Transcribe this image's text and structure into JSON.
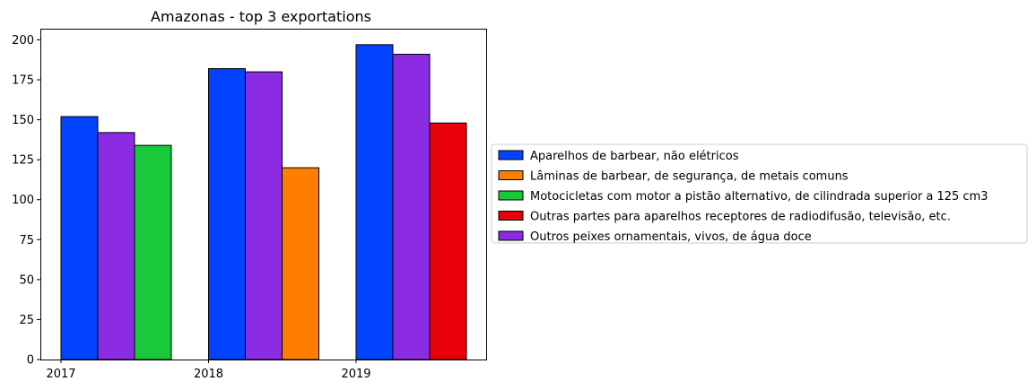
{
  "chart_data": {
    "type": "bar",
    "title": "Amazonas - top 3 exportations",
    "xlabel": "",
    "ylabel": "",
    "categories": [
      "2017",
      "2018",
      "2019"
    ],
    "ylim": [
      0,
      207
    ],
    "yticks": [
      0,
      25,
      50,
      75,
      100,
      125,
      150,
      175,
      200
    ],
    "grid": false,
    "legend_position": "right",
    "series": [
      {
        "name": "Aparelhos de barbear, não elétricos",
        "color": "#0343ff"
      },
      {
        "name": "Lâminas de barbear, de segurança, de metais comuns",
        "color": "#ff7d00"
      },
      {
        "name": "Motocicletas com motor a pistão alternativo, de cilindrada superior a 125 cm3",
        "color": "#1ac93b"
      },
      {
        "name": "Outras partes para aparelhos receptores de radiodifusão, televisão, etc.",
        "color": "#e8000b"
      },
      {
        "name": "Outros peixes ornamentais, vivos, de água doce",
        "color": "#8b2be2"
      }
    ],
    "bars": [
      {
        "category": "2017",
        "series": 0,
        "value": 152
      },
      {
        "category": "2017",
        "series": 4,
        "value": 142
      },
      {
        "category": "2017",
        "series": 2,
        "value": 134
      },
      {
        "category": "2018",
        "series": 0,
        "value": 182
      },
      {
        "category": "2018",
        "series": 4,
        "value": 180
      },
      {
        "category": "2018",
        "series": 1,
        "value": 120
      },
      {
        "category": "2019",
        "series": 0,
        "value": 197
      },
      {
        "category": "2019",
        "series": 4,
        "value": 191
      },
      {
        "category": "2019",
        "series": 3,
        "value": 148
      }
    ]
  }
}
